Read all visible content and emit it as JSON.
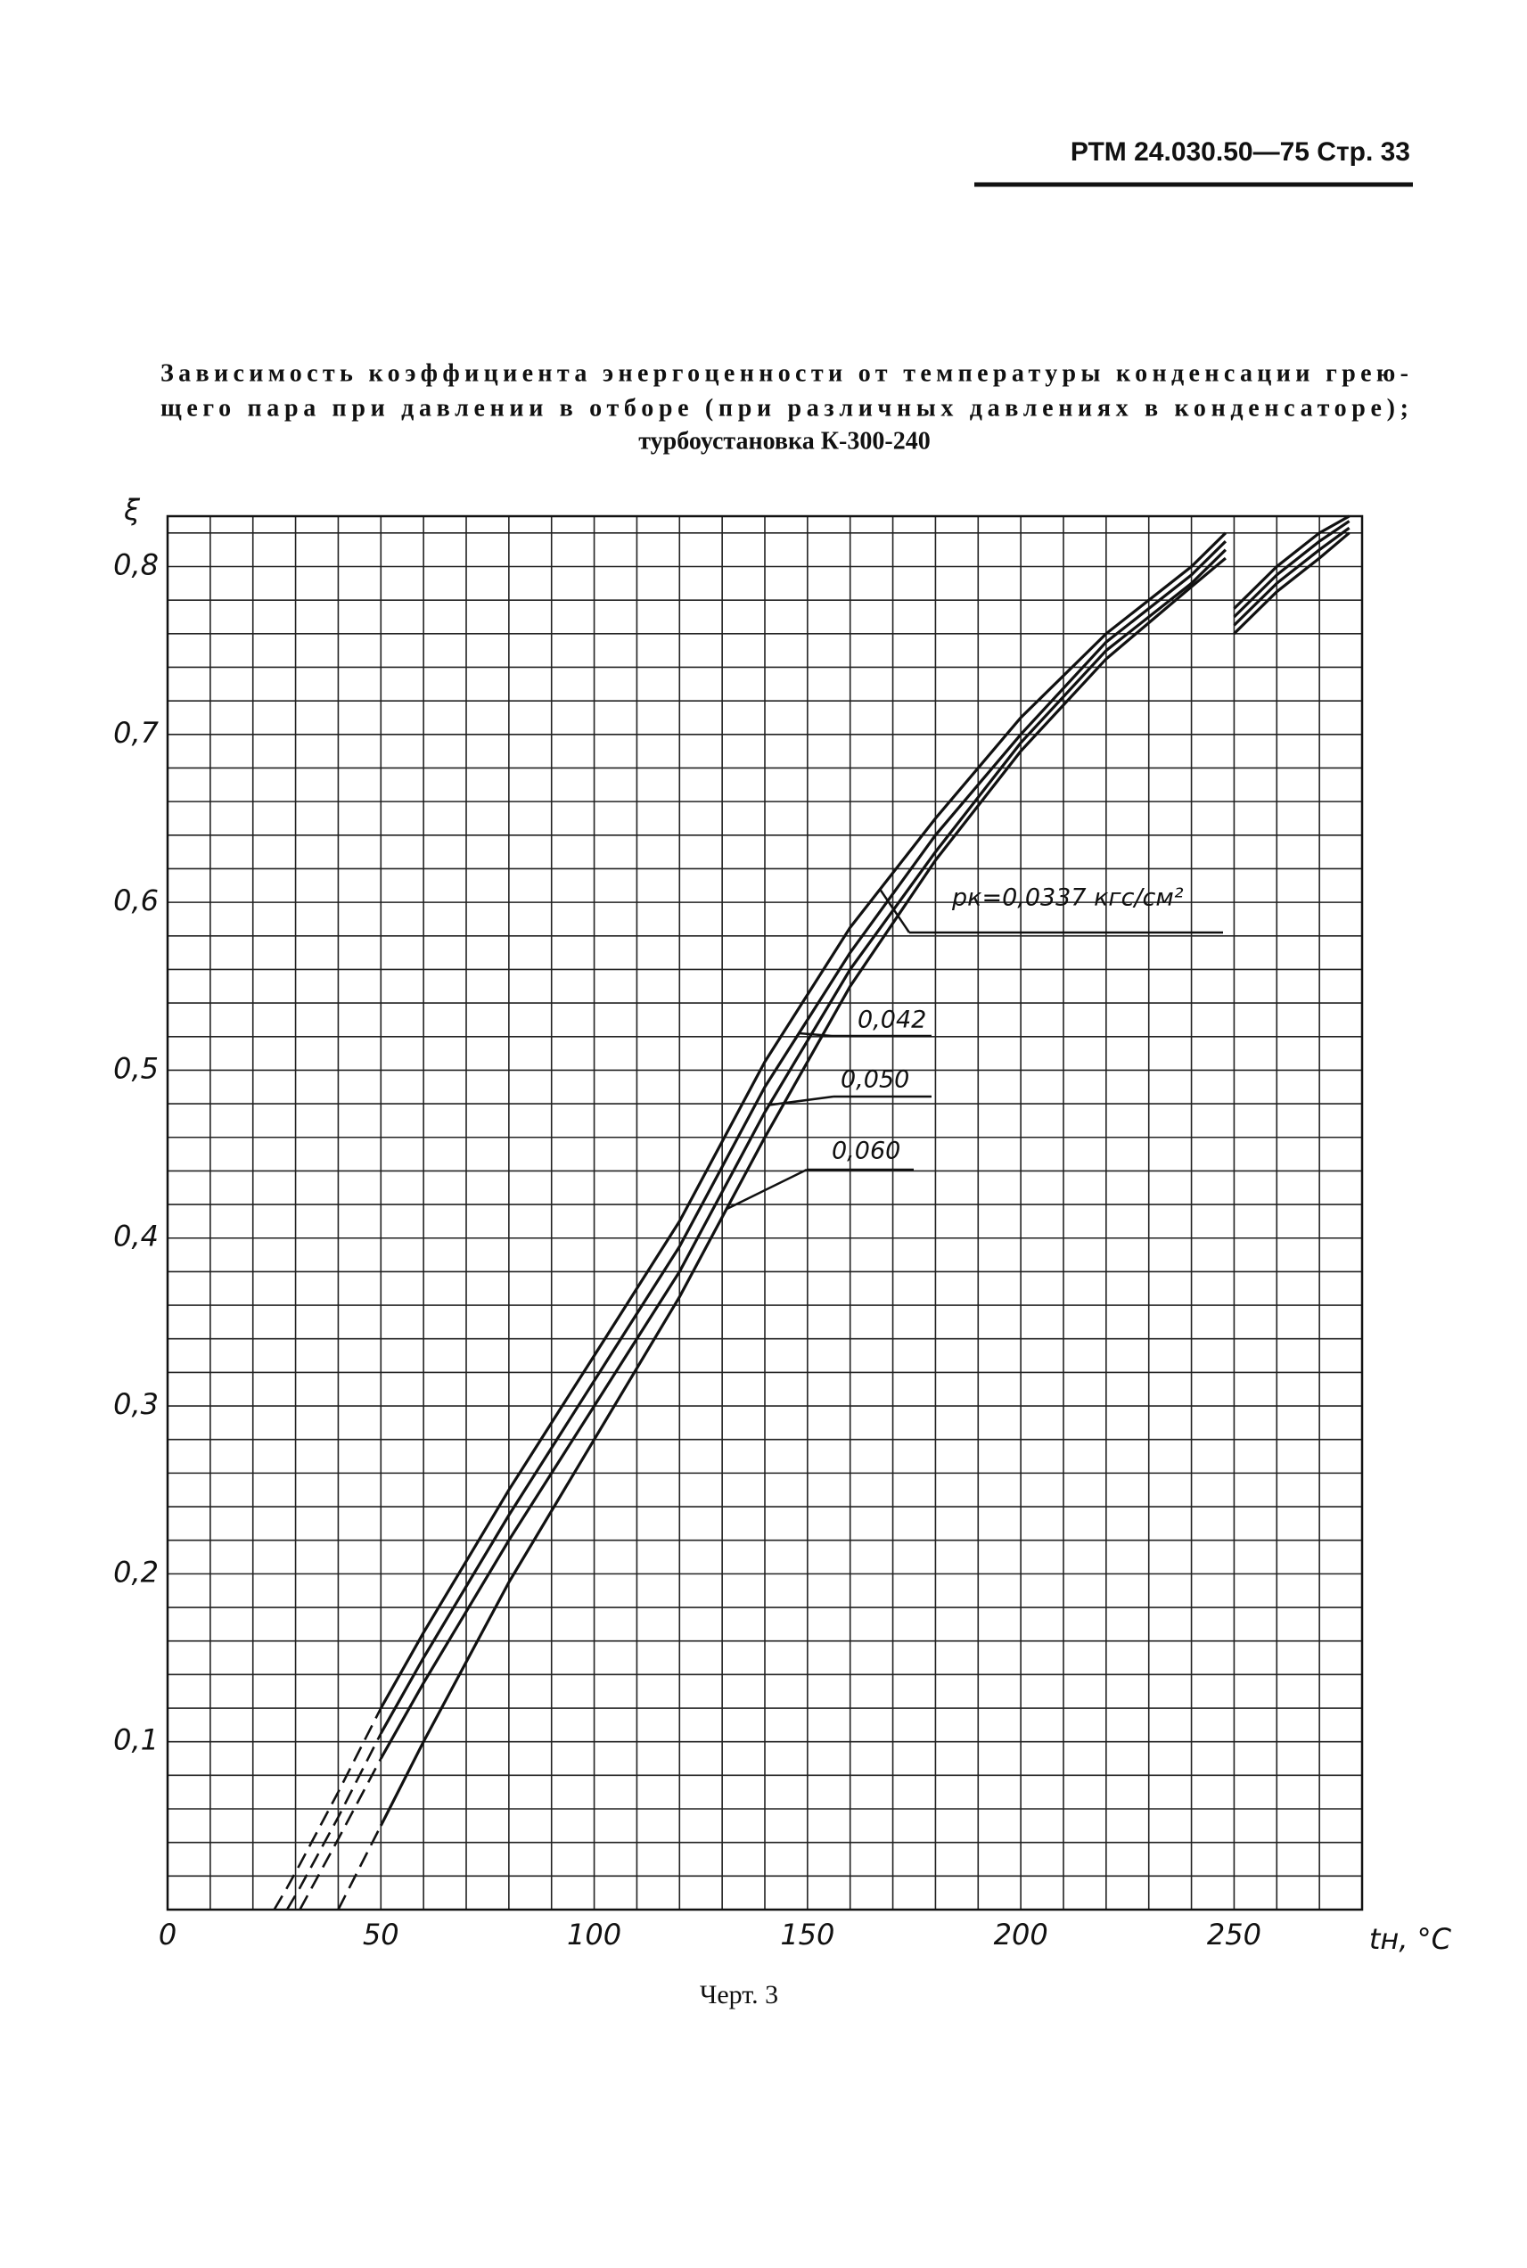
{
  "header": {
    "doc": "РТМ 24.030.50—75   Стр. 33"
  },
  "caption": "Черт. 3",
  "chart_data": {
    "type": "line",
    "title": [
      "Зависимость коэффициента энергоценности от температуры конденсации грею-",
      "щего пара при давлении в отборе (при различных давлениях в конденсаторе);",
      "турбоустановка К-300-240"
    ],
    "x_label": "tн, °C",
    "y_label": "ξ",
    "xlim": [
      0,
      280
    ],
    "ylim": [
      0,
      0.83
    ],
    "xticks": [
      0,
      50,
      100,
      150,
      200,
      250
    ],
    "yticks": [
      {
        "value": 0.1,
        "label": "0,1"
      },
      {
        "value": 0.2,
        "label": "0,2"
      },
      {
        "value": 0.3,
        "label": "0,3"
      },
      {
        "value": 0.4,
        "label": "0,4"
      },
      {
        "value": 0.5,
        "label": "0,5"
      },
      {
        "value": 0.6,
        "label": "0,6"
      },
      {
        "value": 0.7,
        "label": "0,7"
      },
      {
        "value": 0.8,
        "label": "0,8"
      }
    ],
    "xgrid": [
      0,
      10,
      20,
      30,
      40,
      50,
      60,
      70,
      80,
      90,
      100,
      110,
      120,
      130,
      140,
      150,
      160,
      170,
      180,
      190,
      200,
      210,
      220,
      230,
      240,
      250,
      260,
      270,
      280
    ],
    "ygrid": [
      0,
      0.02,
      0.04,
      0.06,
      0.08,
      0.1,
      0.12,
      0.14,
      0.16,
      0.18,
      0.2,
      0.22,
      0.24,
      0.26,
      0.28,
      0.3,
      0.32,
      0.34,
      0.36,
      0.38,
      0.4,
      0.42,
      0.44,
      0.46,
      0.48,
      0.5,
      0.52,
      0.54,
      0.56,
      0.58,
      0.6,
      0.62,
      0.64,
      0.66,
      0.68,
      0.7,
      0.72,
      0.74,
      0.76,
      0.78,
      0.8,
      0.82
    ],
    "grid": true,
    "dashed_below": 50,
    "x": [
      25,
      28,
      31,
      40,
      50,
      60,
      80,
      100,
      120,
      140,
      160,
      180,
      200,
      220,
      240,
      248,
      249,
      250,
      260,
      270,
      277
    ],
    "series": [
      {
        "name": "pк=0,0337 кгс/см²",
        "color": "#111111",
        "values": [
          0,
          0.013,
          0.027,
          0.07,
          0.12,
          0.165,
          0.25,
          0.33,
          0.41,
          0.505,
          0.585,
          0.65,
          0.71,
          0.76,
          0.8,
          0.82,
          null,
          0.775,
          0.8,
          0.82,
          0.83
        ]
      },
      {
        "name": "0,042",
        "color": "#111111",
        "values": [
          null,
          0,
          0.013,
          0.055,
          0.105,
          0.15,
          0.235,
          0.315,
          0.395,
          0.49,
          0.57,
          0.64,
          0.7,
          0.755,
          0.795,
          0.815,
          null,
          0.77,
          0.795,
          0.815,
          0.827
        ]
      },
      {
        "name": "0,050",
        "color": "#111111",
        "values": [
          null,
          null,
          0,
          0.042,
          0.09,
          0.135,
          0.22,
          0.3,
          0.38,
          0.475,
          0.56,
          0.63,
          0.695,
          0.75,
          0.79,
          0.81,
          null,
          0.765,
          0.79,
          0.81,
          0.823
        ]
      },
      {
        "name": "0,060",
        "color": "#111111",
        "values": [
          null,
          null,
          null,
          0,
          0.05,
          0.1,
          0.195,
          0.28,
          0.365,
          0.46,
          0.55,
          0.625,
          0.69,
          0.745,
          0.788,
          0.805,
          null,
          0.76,
          0.785,
          0.805,
          0.82
        ]
      }
    ]
  }
}
